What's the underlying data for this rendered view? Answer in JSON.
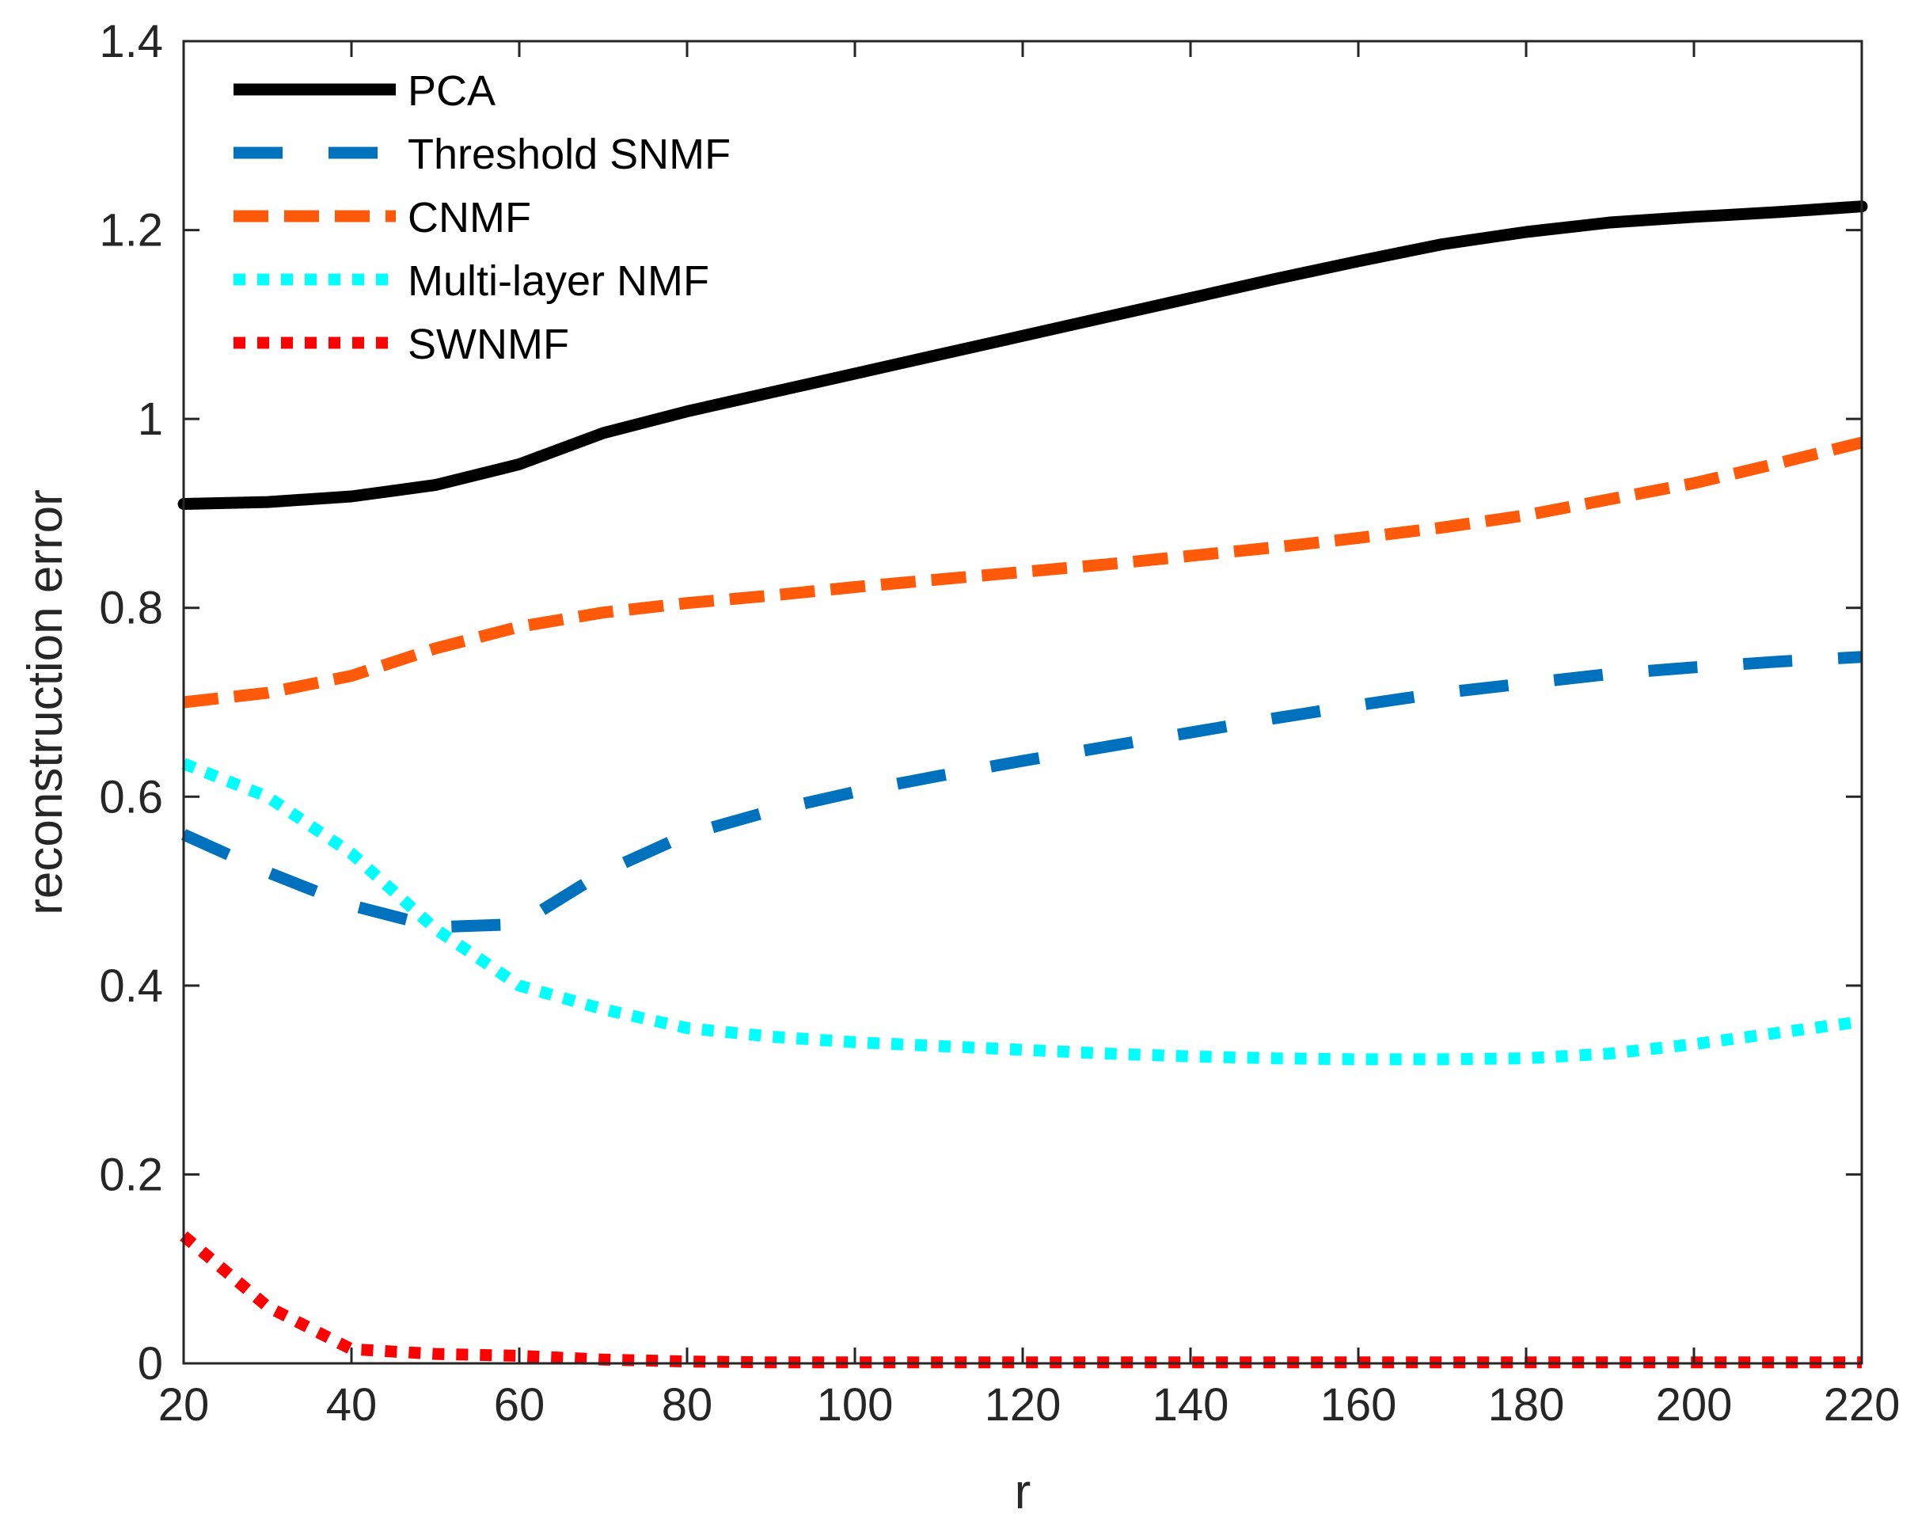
{
  "chart_data": {
    "type": "line",
    "title": "",
    "xlabel": "r",
    "ylabel": "reconstruction error",
    "xlim": [
      20,
      220
    ],
    "ylim": [
      0,
      1.4
    ],
    "xticks": [
      "20",
      "40",
      "60",
      "80",
      "100",
      "120",
      "140",
      "160",
      "180",
      "200",
      "220"
    ],
    "yticks": [
      "0",
      "0.2",
      "0.4",
      "0.6",
      "0.8",
      "1",
      "1.2",
      "1.4"
    ],
    "grid": false,
    "legend_position": "top-left",
    "x": [
      20,
      30,
      40,
      50,
      60,
      70,
      80,
      90,
      100,
      110,
      120,
      130,
      140,
      150,
      160,
      170,
      180,
      190,
      200,
      210,
      220
    ],
    "series": [
      {
        "name": "PCA",
        "style": "solid",
        "color": "#000000",
        "values": [
          0.91,
          0.912,
          0.918,
          0.93,
          0.952,
          0.985,
          1.008,
          1.028,
          1.048,
          1.068,
          1.088,
          1.108,
          1.128,
          1.148,
          1.167,
          1.185,
          1.198,
          1.208,
          1.214,
          1.219,
          1.225
        ]
      },
      {
        "name": "Threshold SNMF",
        "style": "longdash",
        "color": "#0072BD",
        "values": [
          0.56,
          0.52,
          0.485,
          0.462,
          0.465,
          0.52,
          0.56,
          0.585,
          0.605,
          0.622,
          0.638,
          0.653,
          0.668,
          0.683,
          0.697,
          0.71,
          0.72,
          0.73,
          0.737,
          0.743,
          0.748
        ]
      },
      {
        "name": "CNMF",
        "style": "dash",
        "color": "#FF5A0A",
        "values": [
          0.7,
          0.71,
          0.728,
          0.757,
          0.78,
          0.795,
          0.805,
          0.813,
          0.822,
          0.83,
          0.838,
          0.846,
          0.855,
          0.864,
          0.874,
          0.885,
          0.898,
          0.915,
          0.932,
          0.953,
          0.975
        ]
      },
      {
        "name": "Multi-layer NMF",
        "style": "dot",
        "color": "#00FFFF",
        "values": [
          0.635,
          0.6,
          0.54,
          0.46,
          0.4,
          0.375,
          0.355,
          0.346,
          0.34,
          0.336,
          0.332,
          0.328,
          0.325,
          0.323,
          0.322,
          0.322,
          0.323,
          0.328,
          0.338,
          0.35,
          0.362
        ]
      },
      {
        "name": "SWNMF",
        "style": "dot",
        "color": "#FF0000",
        "values": [
          0.135,
          0.06,
          0.015,
          0.01,
          0.008,
          0.004,
          0.002,
          0.001,
          0.001,
          0.001,
          0.001,
          0.001,
          0.001,
          0.001,
          0.001,
          0.001,
          0.001,
          0.001,
          0.001,
          0.001,
          0.001
        ]
      }
    ]
  }
}
